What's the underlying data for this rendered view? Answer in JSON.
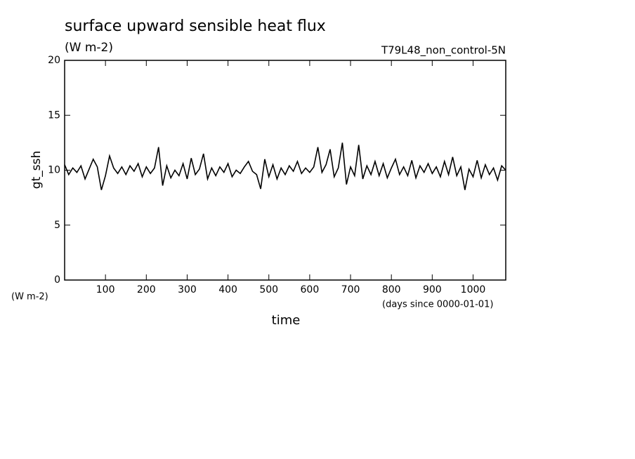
{
  "chart_data": {
    "type": "line",
    "title": "surface upward sensible heat flux",
    "subtitle": "(W m-2)",
    "annotation": "T79L48_non_control-5N",
    "y_label": "gt_ssh",
    "x_label": "time",
    "y_unit": "(W m-2)",
    "x_unit": "(days since 0000-01-01)",
    "color": "#000000",
    "xlim": [
      0,
      1080
    ],
    "ylim": [
      0,
      20
    ],
    "xticks": [
      100,
      200,
      300,
      400,
      500,
      600,
      700,
      800,
      900,
      1000
    ],
    "yticks": [
      0,
      5,
      10,
      15,
      20
    ],
    "x": [
      0,
      10,
      20,
      30,
      40,
      50,
      60,
      70,
      80,
      90,
      100,
      110,
      120,
      130,
      140,
      150,
      160,
      170,
      180,
      190,
      200,
      210,
      220,
      230,
      240,
      250,
      260,
      270,
      280,
      290,
      300,
      310,
      320,
      330,
      340,
      350,
      360,
      370,
      380,
      390,
      400,
      410,
      420,
      430,
      440,
      450,
      460,
      470,
      480,
      490,
      500,
      510,
      520,
      530,
      540,
      550,
      560,
      570,
      580,
      590,
      600,
      610,
      620,
      630,
      640,
      650,
      660,
      670,
      680,
      690,
      700,
      710,
      720,
      730,
      740,
      750,
      760,
      770,
      780,
      790,
      800,
      810,
      820,
      830,
      840,
      850,
      860,
      870,
      880,
      890,
      900,
      910,
      920,
      930,
      940,
      950,
      960,
      970,
      980,
      990,
      1000,
      1010,
      1020,
      1030,
      1040,
      1050,
      1060,
      1070,
      1080
    ],
    "values": [
      10.5,
      9.6,
      10.2,
      9.8,
      10.4,
      9.2,
      10.1,
      11.0,
      10.3,
      8.2,
      9.5,
      11.3,
      10.2,
      9.7,
      10.3,
      9.6,
      10.4,
      9.9,
      10.6,
      9.4,
      10.3,
      9.7,
      10.2,
      12.1,
      8.6,
      10.4,
      9.3,
      10.0,
      9.5,
      10.6,
      9.2,
      11.1,
      9.6,
      10.1,
      11.5,
      9.2,
      10.2,
      9.5,
      10.3,
      9.8,
      10.6,
      9.4,
      10.0,
      9.7,
      10.3,
      10.8,
      9.9,
      9.6,
      8.3,
      11.0,
      9.4,
      10.5,
      9.2,
      10.2,
      9.6,
      10.4,
      9.9,
      10.8,
      9.7,
      10.2,
      9.8,
      10.3,
      12.1,
      9.8,
      10.5,
      11.9,
      9.4,
      10.2,
      12.5,
      8.7,
      10.3,
      9.5,
      12.3,
      9.2,
      10.4,
      9.6,
      10.8,
      9.5,
      10.6,
      9.3,
      10.2,
      11.0,
      9.6,
      10.3,
      9.5,
      10.9,
      9.3,
      10.4,
      9.8,
      10.6,
      9.7,
      10.3,
      9.4,
      10.8,
      9.6,
      11.2,
      9.5,
      10.3,
      8.2,
      10.1,
      9.4,
      10.9,
      9.3,
      10.5,
      9.6,
      10.2,
      9.1,
      10.4,
      10.0
    ]
  }
}
